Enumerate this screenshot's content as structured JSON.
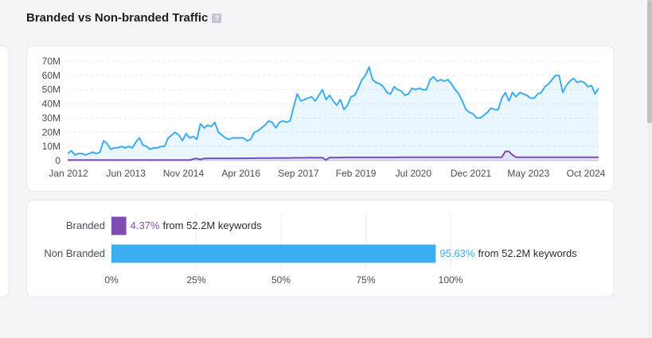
{
  "title": "Branded vs Non-branded Traffic",
  "help_icon": "?",
  "colors": {
    "non_branded": "#3aaef1",
    "branded": "#7e4db3"
  },
  "chart_data": [
    {
      "type": "line",
      "x_ticks": [
        "Jan 2012",
        "Jun 2013",
        "Nov 2014",
        "Apr 2016",
        "Sep 2017",
        "Feb 2019",
        "Jul 2020",
        "Dec 2021",
        "May 2023",
        "Oct 2024"
      ],
      "y_ticks": [
        "0",
        "10M",
        "20M",
        "30M",
        "40M",
        "50M",
        "60M",
        "70M"
      ],
      "ylim": [
        0,
        70
      ],
      "grid": true,
      "series": [
        {
          "key": "non_branded",
          "values": [
            5,
            7,
            4,
            5,
            5,
            4,
            5,
            6,
            5,
            6,
            14,
            12,
            8,
            9,
            9,
            10,
            9,
            10,
            9,
            13,
            16,
            11,
            10,
            8,
            9,
            9,
            10,
            10,
            16,
            18,
            20,
            18,
            14,
            19,
            16,
            17,
            15,
            26,
            23,
            25,
            24,
            27,
            20,
            18,
            16,
            15,
            16,
            16,
            16,
            16,
            14,
            15,
            20,
            21,
            23,
            25,
            28,
            27,
            23,
            27,
            28,
            27,
            28,
            38,
            47,
            42,
            43,
            44,
            45,
            42,
            46,
            50,
            43,
            46,
            42,
            39,
            43,
            36,
            39,
            45,
            46,
            51,
            57,
            60,
            66,
            57,
            55,
            54,
            52,
            48,
            47,
            52,
            50,
            49,
            46,
            47,
            51,
            50,
            51,
            50,
            50,
            57,
            59,
            56,
            57,
            56,
            57,
            54,
            50,
            47,
            42,
            36,
            34,
            33,
            30,
            30,
            32,
            34,
            37,
            36,
            36,
            44,
            48,
            42,
            48,
            45,
            48,
            47,
            46,
            44,
            44,
            47,
            48,
            52,
            54,
            57,
            60,
            60,
            48,
            53,
            56,
            58,
            55,
            56,
            55,
            52,
            53,
            47,
            51
          ],
          "x_range": [
            "Jan 2012",
            "Dec 2024"
          ]
        },
        {
          "key": "branded",
          "values": [
            0.4,
            0.4,
            0.4,
            0.4,
            0.4,
            0.4,
            0.4,
            0.4,
            0.4,
            0.4,
            0.4,
            0.4,
            0.4,
            0.4,
            0.4,
            0.4,
            0.4,
            0.4,
            0.4,
            0.4,
            0.4,
            0.4,
            0.4,
            0.4,
            0.4,
            0.4,
            0.4,
            0.4,
            0.4,
            0.4,
            0.4,
            0.4,
            0.4,
            0.4,
            0.4,
            1.2,
            1.5,
            0.8,
            1.5,
            1.5,
            1.6,
            1.6,
            1.6,
            1.6,
            1.6,
            1.6,
            1.6,
            1.6,
            1.6,
            1.7,
            1.7,
            1.7,
            1.7,
            1.8,
            1.8,
            1.8,
            1.8,
            1.8,
            1.8,
            1.9,
            1.9,
            1.9,
            1.9,
            2,
            2,
            2,
            2,
            2.1,
            2.1,
            2.1,
            2.1,
            2.1,
            0.5,
            2.2,
            2.2,
            2.2,
            2.2,
            2.3,
            2.3,
            2.3,
            2.3,
            2.3,
            2.3,
            2.3,
            2.3,
            2.3,
            2.3,
            2.3,
            2.3,
            2.3,
            2.3,
            2.3,
            2.3,
            2.4,
            2.4,
            2.4,
            2.4,
            2.4,
            2.4,
            2.4,
            2.4,
            2.4,
            2.4,
            2.4,
            2.4,
            2.4,
            2.4,
            2.4,
            2.4,
            2.4,
            2.4,
            2.4,
            2.4,
            2.4,
            2.4,
            2.4,
            2.4,
            2.4,
            2.4,
            2.4,
            2.4,
            2.4,
            6.5,
            6.5,
            4,
            2.4,
            2.4,
            2.4,
            2.4,
            2.4,
            2.4,
            2.4,
            2.4,
            2.4,
            2.4,
            2.4,
            2.4,
            2.4,
            2.4,
            2.4,
            2.4,
            2.4,
            2.4,
            2.4,
            2.4,
            2.4,
            2.4,
            2.4,
            2.4
          ]
        }
      ]
    },
    {
      "type": "bar",
      "orientation": "horizontal",
      "categories": [
        "Branded",
        "Non Branded"
      ],
      "values": [
        4.37,
        95.63
      ],
      "value_labels": [
        "4.37%",
        "95.63%"
      ],
      "suffix_labels": [
        "from 52.2M keywords",
        "from 52.2M keywords"
      ],
      "xlim": [
        0,
        100
      ],
      "x_ticks": [
        "0%",
        "25%",
        "50%",
        "75%",
        "100%"
      ],
      "grid": true
    }
  ]
}
